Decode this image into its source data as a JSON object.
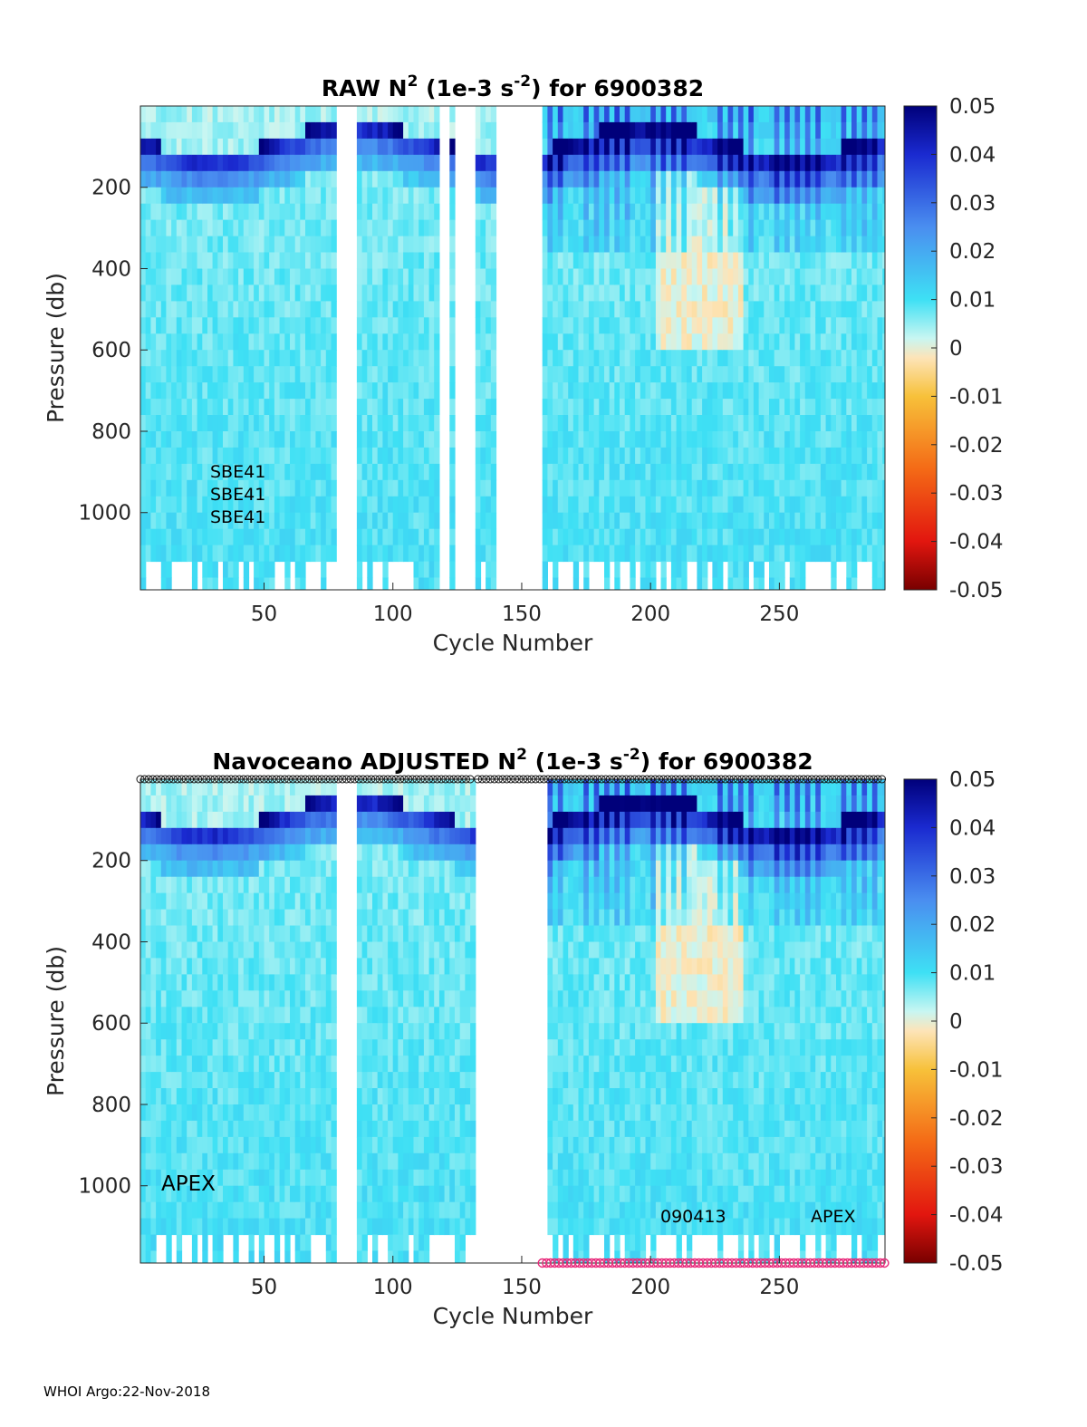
{
  "footer": "WHOI Argo:22-Nov-2018",
  "colorbar": {
    "ticks": [
      "0.05",
      "0.04",
      "0.03",
      "0.02",
      "0.01",
      "0",
      "-0.01",
      "-0.02",
      "-0.03",
      "-0.04",
      "-0.05"
    ],
    "range": [
      -0.05,
      0.05
    ]
  },
  "chart_data": [
    {
      "type": "heatmap",
      "title_main": "RAW N",
      "title_sup": "2",
      "title_mid": " (1e-3 s",
      "title_sup2": "-2",
      "title_end": ") for 6900382",
      "xlabel": "Cycle Number",
      "ylabel": "Pressure (db)",
      "xlim": [
        2,
        291
      ],
      "ylim": [
        0,
        1190
      ],
      "xticks": [
        "50",
        "100",
        "150",
        "200",
        "250"
      ],
      "yticks": [
        "200",
        "400",
        "600",
        "800",
        "1000"
      ],
      "clim": [
        -0.05,
        0.05
      ],
      "annotations": [
        "SBE41",
        "SBE41",
        "SBE41"
      ],
      "missing_cycles": [
        [
          77,
          85
        ],
        [
          118,
          121
        ],
        [
          124,
          130
        ],
        [
          140,
          154
        ],
        [
          155,
          157
        ]
      ]
    },
    {
      "type": "heatmap",
      "title_main": "Navoceano  ADJUSTED N",
      "title_sup": "2",
      "title_mid": " (1e-3 s",
      "title_sup2": "-2",
      "title_end": ") for 6900382",
      "xlabel": "Cycle Number",
      "ylabel": "Pressure (db)",
      "xlim": [
        2,
        291
      ],
      "ylim": [
        0,
        1190
      ],
      "xticks": [
        "50",
        "100",
        "150",
        "200",
        "250"
      ],
      "yticks": [
        "200",
        "400",
        "600",
        "800",
        "1000"
      ],
      "clim": [
        -0.05,
        0.05
      ],
      "annotations": [
        "APEX",
        "090413",
        "APEX"
      ],
      "missing_cycles": [
        [
          77,
          85
        ],
        [
          131,
          158
        ]
      ],
      "qc_markers_top_black": [
        [
          2,
          131
        ],
        [
          133,
          291
        ]
      ],
      "qc_markers_bottom_pink": [
        [
          158,
          291
        ]
      ]
    }
  ]
}
